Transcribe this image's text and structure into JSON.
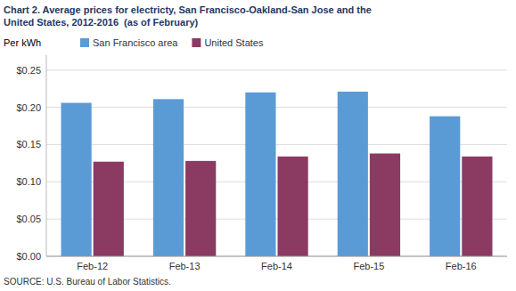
{
  "chart_data": {
    "type": "bar",
    "title": "Chart 2. Average prices for electricty, San Francisco-Oakland-San Jose and the\nUnited States, 2012-2016  (as of February)",
    "y_label": "Per kWh",
    "source": "SOURCE: U.S. Bureau of Labor Statistics.",
    "categories": [
      "Feb-12",
      "Feb-13",
      "Feb-14",
      "Feb-15",
      "Feb-16"
    ],
    "series": [
      {
        "name": "San Francisco area",
        "color": "#5B9BD5",
        "values": [
          0.206,
          0.211,
          0.22,
          0.221,
          0.188
        ]
      },
      {
        "name": "United States",
        "color": "#8B3A62",
        "values": [
          0.127,
          0.128,
          0.134,
          0.138,
          0.134
        ]
      }
    ],
    "ylim": [
      0,
      0.27
    ],
    "yticks": [
      {
        "value": 0.0,
        "label": "$0.00"
      },
      {
        "value": 0.05,
        "label": "$0.05"
      },
      {
        "value": 0.1,
        "label": "$0.10"
      },
      {
        "value": 0.15,
        "label": "$0.15"
      },
      {
        "value": 0.2,
        "label": "$0.20"
      },
      {
        "value": 0.25,
        "label": "$0.25"
      }
    ],
    "grid": true,
    "legend": "upper left",
    "title_color": "#1F3864"
  }
}
